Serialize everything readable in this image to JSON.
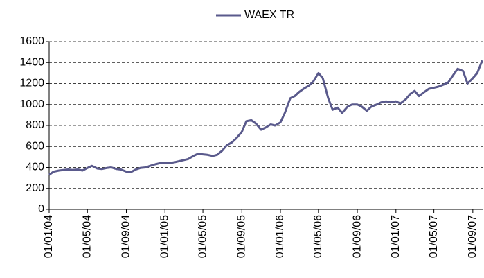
{
  "chart_data": {
    "type": "line",
    "x": [
      "01/01/04",
      "15/01/04",
      "01/02/04",
      "15/02/04",
      "01/03/04",
      "15/03/04",
      "01/04/04",
      "15/04/04",
      "01/05/04",
      "15/05/04",
      "01/06/04",
      "15/06/04",
      "01/07/04",
      "15/07/04",
      "01/08/04",
      "15/08/04",
      "01/09/04",
      "15/09/04",
      "01/10/04",
      "15/10/04",
      "01/11/04",
      "15/11/04",
      "01/12/04",
      "15/12/04",
      "01/01/05",
      "15/01/05",
      "01/02/05",
      "15/02/05",
      "01/03/05",
      "15/03/05",
      "01/04/05",
      "15/04/05",
      "01/05/05",
      "15/05/05",
      "01/06/05",
      "15/06/05",
      "01/07/05",
      "15/07/05",
      "01/08/05",
      "15/08/05",
      "01/09/05",
      "15/09/05",
      "01/10/05",
      "15/10/05",
      "01/11/05",
      "15/11/05",
      "01/12/05",
      "15/12/05",
      "01/01/06",
      "15/01/06",
      "01/02/06",
      "15/02/06",
      "01/03/06",
      "15/03/06",
      "01/04/06",
      "15/04/06",
      "01/05/06",
      "15/05/06",
      "01/06/06",
      "15/06/06",
      "01/07/06",
      "15/07/06",
      "01/08/06",
      "15/08/06",
      "01/09/06",
      "15/09/06",
      "01/10/06",
      "15/10/06",
      "01/11/06",
      "15/11/06",
      "01/12/06",
      "15/12/06",
      "01/01/07",
      "15/01/07",
      "01/02/07",
      "15/02/07",
      "01/03/07",
      "15/03/07",
      "01/04/07",
      "15/04/07",
      "01/05/07",
      "15/05/07",
      "01/06/07",
      "15/06/07",
      "01/07/07",
      "15/07/07",
      "01/08/07",
      "15/08/07",
      "01/09/07",
      "15/09/07",
      "01/10/07"
    ],
    "series": [
      {
        "name": "WAEX TR",
        "color": "#5a5a8c",
        "values": [
          330,
          360,
          370,
          375,
          380,
          375,
          380,
          370,
          395,
          415,
          390,
          385,
          395,
          400,
          385,
          380,
          360,
          355,
          380,
          395,
          400,
          415,
          430,
          440,
          445,
          440,
          450,
          460,
          470,
          480,
          510,
          530,
          525,
          520,
          510,
          520,
          560,
          610,
          640,
          680,
          740,
          840,
          850,
          820,
          760,
          780,
          810,
          800,
          830,
          920,
          1060,
          1080,
          1120,
          1150,
          1180,
          1220,
          1300,
          1250,
          1060,
          950,
          970,
          920,
          980,
          1000,
          1000,
          980,
          940,
          980,
          1000,
          1020,
          1030,
          1020,
          1030,
          1010,
          1050,
          1100,
          1130,
          1080,
          1120,
          1150,
          1160,
          1170,
          1190,
          1210,
          1280,
          1340,
          1320,
          1200,
          1250,
          1300,
          1420
        ]
      }
    ],
    "xlim": [
      "01/01/04",
      "02/10/07"
    ],
    "xticks": [
      "01/01/04",
      "01/05/04",
      "01/09/04",
      "01/01/05",
      "01/05/05",
      "01/09/05",
      "01/01/06",
      "01/05/06",
      "01/09/06",
      "01/01/07",
      "01/05/07",
      "01/09/07"
    ],
    "ylim": [
      0,
      1600
    ],
    "yticks": [
      0,
      200,
      400,
      600,
      800,
      1000,
      1200,
      1400,
      1600
    ],
    "grid": true,
    "legend": "top"
  }
}
